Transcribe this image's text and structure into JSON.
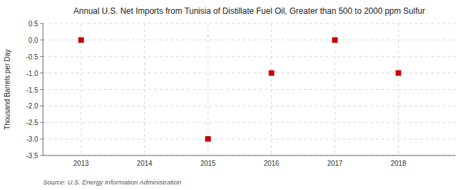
{
  "chart_data": {
    "type": "scatter",
    "title": "Annual U.S. Net Imports from Tunisia of Distillate Fuel Oil, Greater than 500 to 2000 ppm Sulfur",
    "y_label": "Thousand Barrels per Day",
    "annotations": [
      "Source: U.S. Energy Information Administration"
    ],
    "x": [
      2013,
      2015,
      2016,
      2017,
      2018
    ],
    "values": [
      0.0,
      -3.0,
      -1.0,
      0.0,
      -1.0
    ],
    "xlim": [
      2012.4,
      2018.9
    ],
    "ylim": [
      -3.5,
      0.5
    ],
    "xticks": [
      2013,
      2014,
      2015,
      2016,
      2017,
      2018
    ],
    "yticks": [
      0.5,
      {
        "value": 0.0,
        "label": "0.0"
      },
      -0.5,
      {
        "value": -1.0,
        "label": "-1.0"
      },
      -1.5,
      {
        "value": -2.0,
        "label": "-2.0"
      },
      -2.5,
      {
        "value": -3.0,
        "label": "-3.0"
      },
      -3.5
    ],
    "color": "#cc0000",
    "marker": "square",
    "grid": true
  }
}
